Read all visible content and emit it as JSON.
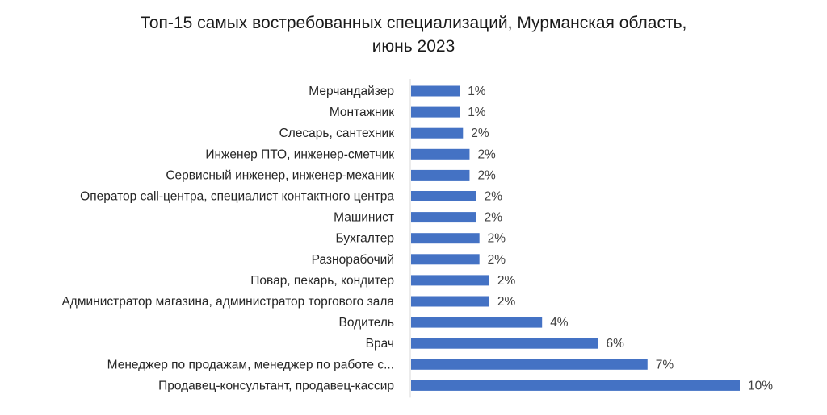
{
  "chart_data": {
    "type": "bar",
    "orientation": "horizontal",
    "title_line1": "Топ-15 самых востребованных специализаций, Мурманская область,",
    "title_line2": "июнь 2023",
    "categories": [
      "Мерчандайзер",
      "Монтажник",
      "Слесарь, сантехник",
      "Инженер ПТО, инженер-сметчик",
      "Сервисный инженер, инженер-механик",
      "Оператор call-центра, специалист контактного центра",
      "Машинист",
      "Бухгалтер",
      "Разнорабочий",
      "Повар, пекарь, кондитер",
      "Администратор магазина, администратор торгового зала",
      "Водитель",
      "Врач",
      "Менеджер по продажам, менеджер по работе с...",
      "Продавец-консультант, продавец-кассир"
    ],
    "values": [
      1.5,
      1.5,
      1.6,
      1.8,
      1.8,
      2.0,
      2.0,
      2.1,
      2.1,
      2.4,
      2.4,
      4.0,
      5.7,
      7.2,
      10.0
    ],
    "labels": [
      "1%",
      "1%",
      "2%",
      "2%",
      "2%",
      "2%",
      "2%",
      "2%",
      "2%",
      "2%",
      "2%",
      "4%",
      "6%",
      "7%",
      "10%"
    ],
    "xlim": [
      0,
      10
    ],
    "bar_color": "#4472C4",
    "grid": false,
    "legend": "none"
  }
}
